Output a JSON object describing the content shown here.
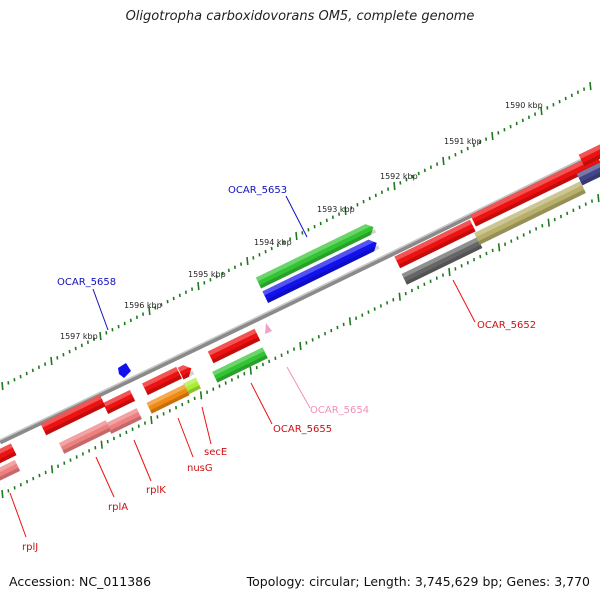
{
  "title": "Oligotropha carboxidovorans OM5, complete genome",
  "accession_text": "Accession: NC_011386",
  "summary_text": "Topology: circular; Length: 3,745,629 bp; Genes: 3,770",
  "colors": {
    "backbone": "#8a8a8a",
    "tick": "#1f7a1f",
    "red": "#ee1111",
    "pink": "#ee8080",
    "green": "#33c433",
    "blue": "#1111ee",
    "gray": "#666666",
    "olive": "#b8b06a",
    "orange": "#f08a10",
    "lime": "#aaee33",
    "navy": "#444488",
    "light_pink": "#f0a0c8"
  },
  "outer_ticks": [
    "1590 kbp",
    "1591 kbp",
    "1592 kbp",
    "1593 kbp",
    "1594 kbp",
    "1595 kbp",
    "1596 kbp",
    "1597 kbp"
  ],
  "gene_labels": [
    {
      "text": "OCAR_5653",
      "color": "#1111bb"
    },
    {
      "text": "OCAR_5658",
      "color": "#1111bb"
    },
    {
      "text": "OCAR_5652",
      "color": "#cc1111"
    },
    {
      "text": "OCAR_5654",
      "color": "#f090b8"
    },
    {
      "text": "OCAR_5655",
      "color": "#cc1111"
    },
    {
      "text": "secE",
      "color": "#cc1111"
    },
    {
      "text": "nusG",
      "color": "#cc1111"
    },
    {
      "text": "rplK",
      "color": "#cc1111"
    },
    {
      "text": "rplA",
      "color": "#cc1111"
    },
    {
      "text": "rplJ",
      "color": "#cc1111"
    }
  ]
}
